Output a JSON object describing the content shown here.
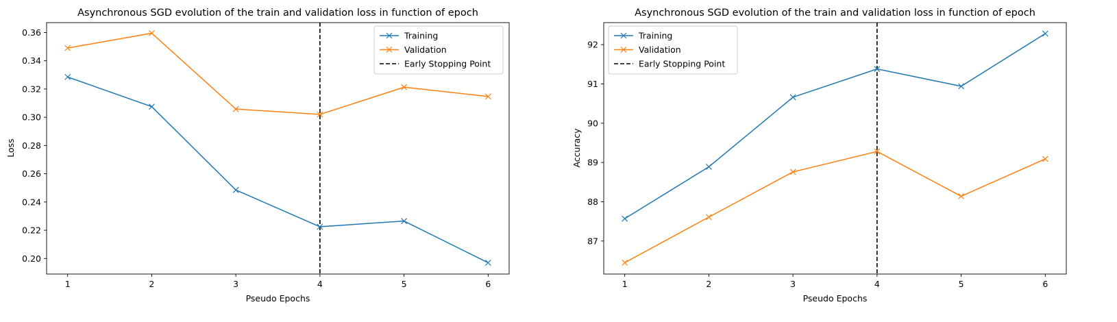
{
  "chart_data": [
    {
      "type": "line",
      "title": "Asynchronous SGD evolution of the train and validation loss in function of epoch",
      "xlabel": "Pseudo Epochs",
      "ylabel": "Loss",
      "x": [
        1,
        2,
        3,
        4,
        5,
        6
      ],
      "xlim": [
        0.75,
        6.25
      ],
      "ylim": [
        0.189,
        0.367
      ],
      "xticks": [
        1,
        2,
        3,
        4,
        5,
        6
      ],
      "xtick_labels": [
        "1",
        "2",
        "3",
        "4",
        "5",
        "6"
      ],
      "yticks": [
        0.2,
        0.22,
        0.24,
        0.26,
        0.28,
        0.3,
        0.32,
        0.34,
        0.36
      ],
      "ytick_labels": [
        "0.20",
        "0.22",
        "0.24",
        "0.26",
        "0.28",
        "0.30",
        "0.32",
        "0.34",
        "0.36"
      ],
      "series": [
        {
          "name": "Training",
          "color": "#1f77b4",
          "marker": "x",
          "values": [
            0.3285,
            0.3075,
            0.2485,
            0.2225,
            0.2265,
            0.197
          ]
        },
        {
          "name": "Validation",
          "color": "#ff7f0e",
          "marker": "x",
          "values": [
            0.349,
            0.3595,
            0.3058,
            0.302,
            0.3213,
            0.3147
          ]
        }
      ],
      "vline": {
        "x": 4,
        "name": "Early Stopping Point",
        "color": "#000000",
        "style": "dashed"
      },
      "legend": "top-right",
      "grid": false
    },
    {
      "type": "line",
      "title": "Asynchronous SGD evolution of the train and validation loss in function of epoch",
      "xlabel": "Pseudo Epochs",
      "ylabel": "Accuracy",
      "x": [
        1,
        2,
        3,
        4,
        5,
        6
      ],
      "xlim": [
        0.75,
        6.25
      ],
      "ylim": [
        86.16,
        92.56
      ],
      "xticks": [
        1,
        2,
        3,
        4,
        5,
        6
      ],
      "xtick_labels": [
        "1",
        "2",
        "3",
        "4",
        "5",
        "6"
      ],
      "yticks": [
        87,
        88,
        89,
        90,
        91,
        92
      ],
      "ytick_labels": [
        "87",
        "88",
        "89",
        "90",
        "91",
        "92"
      ],
      "series": [
        {
          "name": "Training",
          "color": "#1f77b4",
          "marker": "x",
          "values": [
            87.57,
            88.89,
            90.66,
            91.38,
            90.94,
            92.28
          ]
        },
        {
          "name": "Validation",
          "color": "#ff7f0e",
          "marker": "x",
          "values": [
            86.45,
            87.61,
            88.76,
            89.28,
            88.14,
            89.09
          ]
        }
      ],
      "vline": {
        "x": 4,
        "name": "Early Stopping Point",
        "color": "#000000",
        "style": "dashed"
      },
      "legend": "top-left",
      "grid": false
    }
  ]
}
